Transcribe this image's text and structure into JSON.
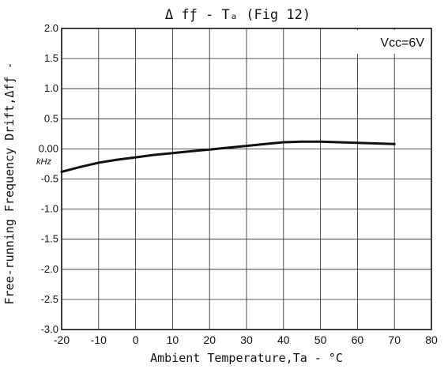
{
  "chart_data": {
    "type": "line",
    "title": "Δ fƒ - Tₐ (Fig 12)",
    "xlabel": "Ambient Temperature,Ta - °C",
    "ylabel": "Free-running Frequency Drift,Δfƒ -",
    "y_unit": "kHz",
    "annotation": "Vcc=6V",
    "xlim": [
      -20,
      80
    ],
    "ylim": [
      -3.0,
      2.0
    ],
    "grid": true,
    "x_ticks": [
      "-20",
      "-10",
      "0",
      "10",
      "20",
      "30",
      "40",
      "50",
      "60",
      "70",
      "80"
    ],
    "y_ticks": [
      "2.0",
      "1.5",
      "1.0",
      "0.5",
      "0.00",
      "-0.5",
      "-1.0",
      "-1.5",
      "-2.0",
      "-2.5",
      "-3.0"
    ],
    "series": [
      {
        "x": [
          -20,
          -15,
          -10,
          -5,
          0,
          5,
          10,
          15,
          20,
          25,
          30,
          35,
          40,
          45,
          50,
          55,
          60,
          65,
          70
        ],
        "y": [
          -0.38,
          -0.3,
          -0.23,
          -0.18,
          -0.14,
          -0.1,
          -0.07,
          -0.04,
          -0.01,
          0.02,
          0.05,
          0.08,
          0.11,
          0.12,
          0.12,
          0.11,
          0.1,
          0.09,
          0.08
        ]
      }
    ]
  }
}
